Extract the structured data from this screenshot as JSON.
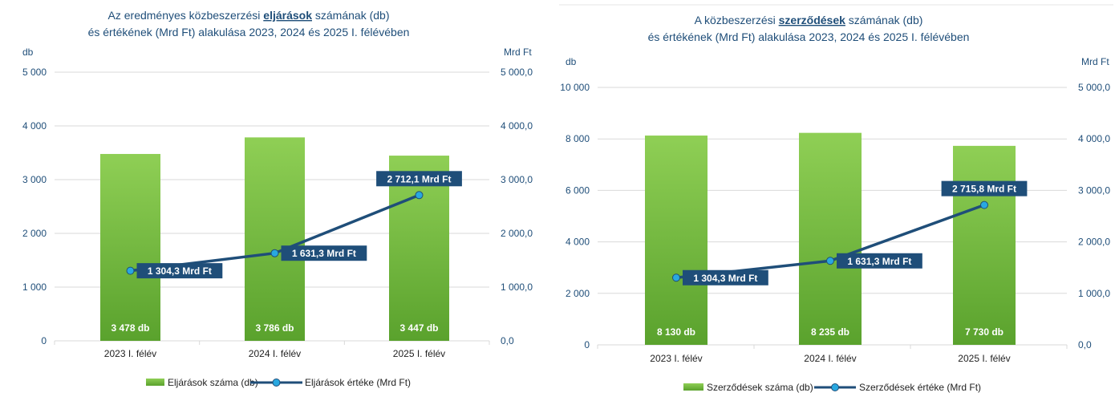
{
  "colors": {
    "bar_top": "#8fcf55",
    "bar_bottom": "#5aa22d",
    "line": "#1f4e79",
    "marker": "#29a8e0",
    "label_box": "#1f4e79",
    "grid": "#d9d9d9",
    "title": "#1f4e79"
  },
  "chart_data": [
    {
      "type": "bar",
      "title_parts": [
        "Az eredményes közbeszerzési ",
        "eljárások",
        " számának (db)"
      ],
      "title_line2": "és értékének (Mrd Ft) alakulása 2023, 2024 és 2025 I. félévében",
      "y_left_unit": "db",
      "y_right_unit": "Mrd Ft",
      "categories": [
        "2023 I. félév",
        "2024 I. félév",
        "2025 I. félév"
      ],
      "ylim_left": [
        0,
        5000
      ],
      "ylim_right": [
        0,
        5000
      ],
      "y_left_ticks": [
        "0",
        "1 000",
        "2 000",
        "3 000",
        "4 000",
        "5 000"
      ],
      "y_right_ticks": [
        "0,0",
        "1 000,0",
        "2 000,0",
        "3 000,0",
        "4 000,0",
        "5 000,0"
      ],
      "series": [
        {
          "name": "Eljárások száma (db)",
          "type": "bar",
          "axis": "left",
          "values": [
            3478,
            3786,
            3447
          ],
          "labels": [
            "3 478 db",
            "3 786 db",
            "3 447 db"
          ]
        },
        {
          "name": "Eljárások értéke (Mrd Ft)",
          "type": "line",
          "axis": "right",
          "values": [
            1304.3,
            1631.3,
            2712.1
          ],
          "labels": [
            "1 304,3 Mrd Ft",
            "1 631,3 Mrd Ft",
            "2 712,1 Mrd Ft"
          ]
        }
      ],
      "grid": true,
      "legend": "bottom"
    },
    {
      "type": "bar",
      "title_parts": [
        "A közbeszerzési ",
        "szerződések",
        " számának (db)"
      ],
      "title_line2": "és értékének (Mrd Ft) alakulása 2023, 2024 és 2025 I. félévében",
      "y_left_unit": "db",
      "y_right_unit": "Mrd Ft",
      "categories": [
        "2023 I. félév",
        "2024 I. félév",
        "2025 I. félév"
      ],
      "ylim_left": [
        0,
        10000
      ],
      "ylim_right": [
        0,
        5000
      ],
      "y_left_ticks": [
        "0",
        "2 000",
        "4 000",
        "6 000",
        "8 000",
        "10 000"
      ],
      "y_right_ticks": [
        "0,0",
        "1 000,0",
        "2 000,0",
        "3 000,0",
        "4 000,0",
        "5 000,0"
      ],
      "series": [
        {
          "name": "Szerződések száma (db)",
          "type": "bar",
          "axis": "left",
          "values": [
            8130,
            8235,
            7730
          ],
          "labels": [
            "8 130 db",
            "8 235 db",
            "7 730 db"
          ]
        },
        {
          "name": "Szerződések értéke (Mrd Ft)",
          "type": "line",
          "axis": "right",
          "values": [
            1304.3,
            1631.3,
            2715.8
          ],
          "labels": [
            "1 304,3 Mrd Ft",
            "1 631,3 Mrd Ft",
            "2 715,8 Mrd Ft"
          ]
        }
      ],
      "grid": true,
      "legend": "bottom"
    }
  ]
}
